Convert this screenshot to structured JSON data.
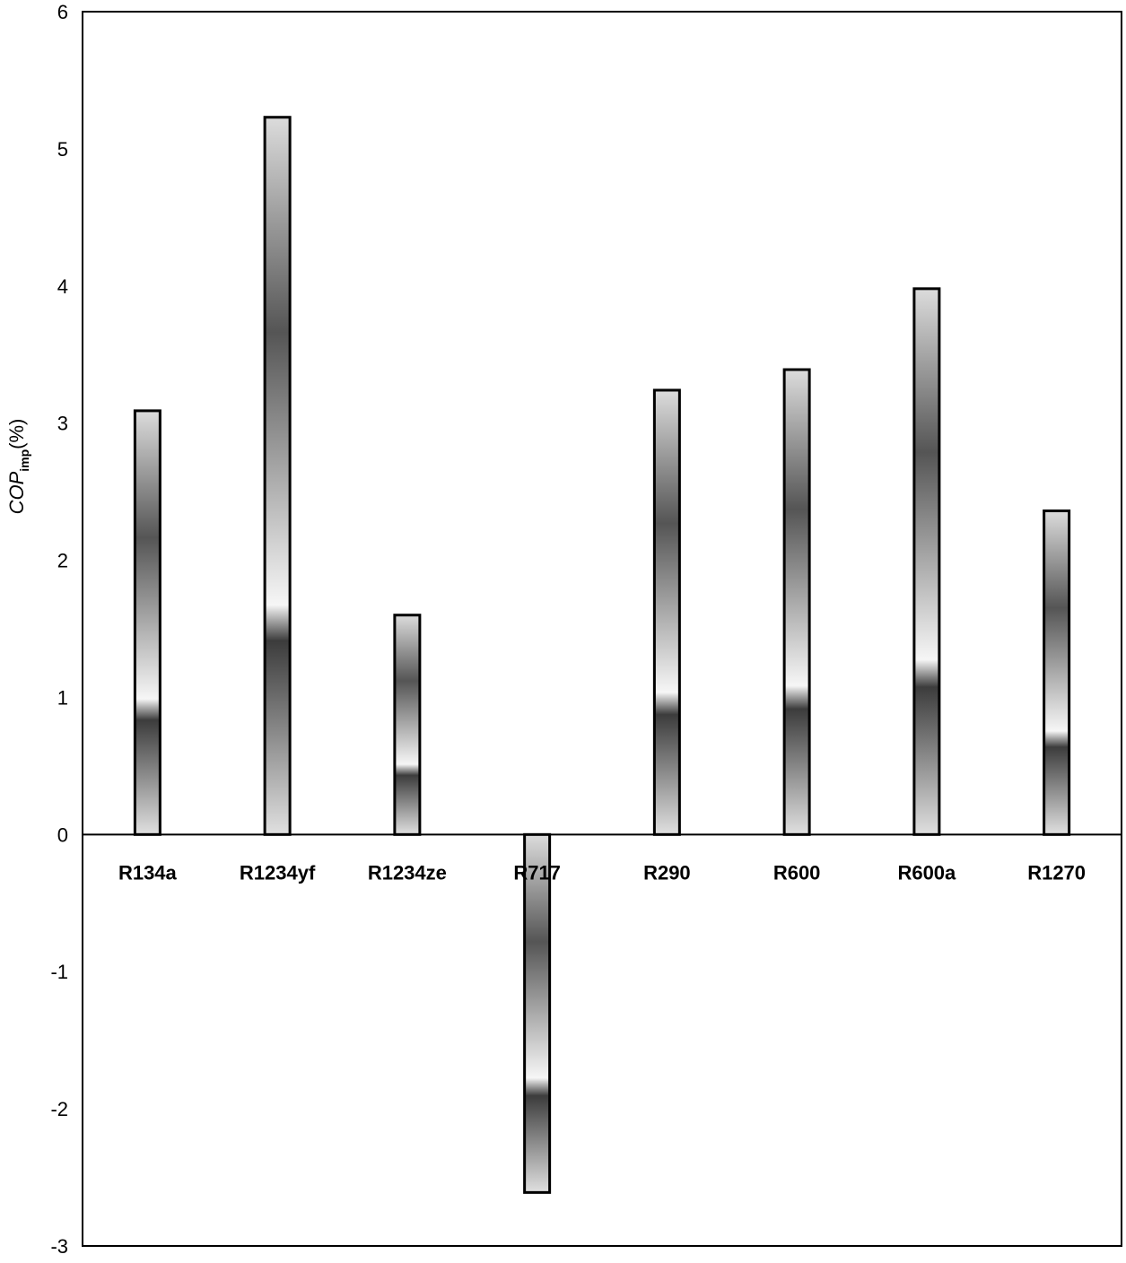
{
  "chart_data": {
    "type": "bar",
    "title": "",
    "xlabel": "",
    "ylabel": "COP",
    "ylabel_subscript": "imp",
    "ylabel_suffix": "(%)",
    "ylim": [
      -3,
      6
    ],
    "yticks": [
      -3,
      -2,
      -1,
      0,
      1,
      2,
      3,
      4,
      5,
      6
    ],
    "grid": false,
    "categories": [
      "R134a",
      "R1234yf",
      "R1234ze",
      "R717",
      "R290",
      "R600",
      "R600a",
      "R1270"
    ],
    "values": [
      3.09,
      5.23,
      1.6,
      -2.61,
      3.24,
      3.39,
      3.98,
      2.36
    ],
    "bar_fill": "grayscale gradient",
    "bar_stroke": "#000000"
  }
}
